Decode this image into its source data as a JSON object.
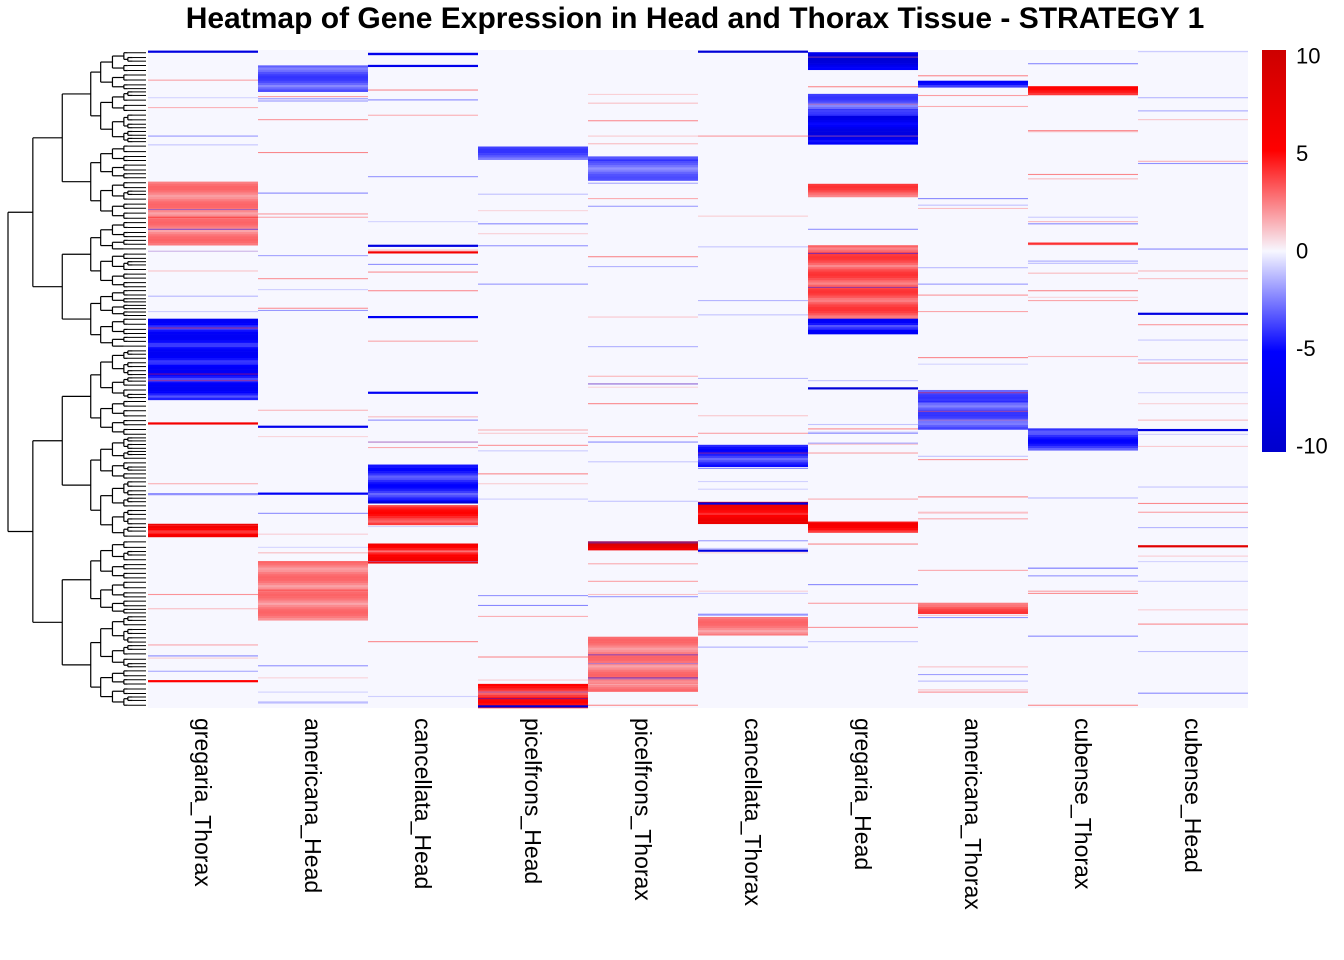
{
  "chart_data": {
    "type": "heatmap",
    "title": "Heatmap of Gene Expression in Head and Thorax Tissue - STRATEGY 1",
    "columns": [
      "gregaria_Thorax",
      "americana_Head",
      "cancellata_Head",
      "picelfrons_Head",
      "picelfrons_Thorax",
      "cancellata_Thorax",
      "gregaria_Head",
      "americana_Thorax",
      "cubense_Thorax",
      "cubense_Head"
    ],
    "row_count": 600,
    "value_range": [
      -10,
      10
    ],
    "colorbar": {
      "ticks": [
        10,
        5,
        0,
        -5,
        -10
      ],
      "tick_labels": [
        "10",
        "5",
        "0",
        "-5",
        "-10"
      ],
      "colors": {
        "low": "#0000CD",
        "mid_low": "#0000FF",
        "mid": "#F7F7FF",
        "mid_high": "#FF0000",
        "high": "#CD0000"
      }
    },
    "blocks": [
      {
        "column": "gregaria_Head",
        "rows": [
          2,
          18
        ],
        "value": -9
      },
      {
        "column": "americana_Head",
        "rows": [
          14,
          38
        ],
        "value": -4
      },
      {
        "column": "americana_Thorax",
        "rows": [
          28,
          34
        ],
        "value": -6
      },
      {
        "column": "cubense_Thorax",
        "rows": [
          33,
          40
        ],
        "value": 5
      },
      {
        "column": "gregaria_Head",
        "rows": [
          40,
          60
        ],
        "value": -4
      },
      {
        "column": "gregaria_Head",
        "rows": [
          60,
          86
        ],
        "value": -8
      },
      {
        "column": "picelfrons_Head",
        "rows": [
          88,
          100
        ],
        "value": -4
      },
      {
        "column": "picelfrons_Thorax",
        "rows": [
          97,
          118
        ],
        "value": -3.5
      },
      {
        "column": "gregaria_Head",
        "rows": [
          122,
          133
        ],
        "value": 4
      },
      {
        "column": "gregaria_Thorax",
        "rows": [
          120,
          178
        ],
        "value": 3
      },
      {
        "column": "gregaria_Head",
        "rows": [
          178,
          245
        ],
        "value": 4
      },
      {
        "column": "gregaria_Head",
        "rows": [
          245,
          258
        ],
        "value": -6
      },
      {
        "column": "gregaria_Thorax",
        "rows": [
          245,
          318
        ],
        "value": -6
      },
      {
        "column": "americana_Thorax",
        "rows": [
          310,
          345
        ],
        "value": -4
      },
      {
        "column": "cubense_Thorax",
        "rows": [
          345,
          365
        ],
        "value": -5
      },
      {
        "column": "cancellata_Thorax",
        "rows": [
          360,
          380
        ],
        "value": -5
      },
      {
        "column": "cancellata_Head",
        "rows": [
          378,
          412
        ],
        "value": -5
      },
      {
        "column": "cancellata_Head",
        "rows": [
          415,
          432
        ],
        "value": 5
      },
      {
        "column": "cancellata_Thorax",
        "rows": [
          412,
          432
        ],
        "value": 7
      },
      {
        "column": "gregaria_Thorax",
        "rows": [
          432,
          444
        ],
        "value": 7
      },
      {
        "column": "gregaria_Head",
        "rows": [
          430,
          440
        ],
        "value": 6
      },
      {
        "column": "picelfrons_Thorax",
        "rows": [
          448,
          456
        ],
        "value": 9
      },
      {
        "column": "cancellata_Head",
        "rows": [
          450,
          468
        ],
        "value": 6
      },
      {
        "column": "americana_Head",
        "rows": [
          466,
          520
        ],
        "value": 3
      },
      {
        "column": "americana_Thorax",
        "rows": [
          504,
          514
        ],
        "value": 4
      },
      {
        "column": "cancellata_Thorax",
        "rows": [
          517,
          533
        ],
        "value": 3
      },
      {
        "column": "picelfrons_Thorax",
        "rows": [
          535,
          585
        ],
        "value": 3
      },
      {
        "column": "picelfrons_Head",
        "rows": [
          578,
          600
        ],
        "value": 5
      }
    ],
    "lines": [
      {
        "column": "gregaria_Thorax",
        "row": 1,
        "value": -8
      },
      {
        "column": "cancellata_Head",
        "row": 3,
        "value": -7
      },
      {
        "column": "cancellata_Head",
        "row": 14,
        "value": -7
      },
      {
        "column": "cancellata_Thorax",
        "row": 1,
        "value": -9
      },
      {
        "column": "cancellata_Head",
        "row": 178,
        "value": -8
      },
      {
        "column": "cancellata_Head",
        "row": 243,
        "value": -6
      },
      {
        "column": "gregaria_Head",
        "row": 308,
        "value": -9
      },
      {
        "column": "cancellata_Head",
        "row": 312,
        "value": -6
      },
      {
        "column": "americana_Head",
        "row": 343,
        "value": -7
      },
      {
        "column": "cancellata_Head",
        "row": 412,
        "value": -9
      },
      {
        "column": "cancellata_Thorax",
        "row": 413,
        "value": -8
      },
      {
        "column": "cancellata_Thorax",
        "row": 456,
        "value": -8
      },
      {
        "column": "picelfrons_Head",
        "row": 598,
        "value": -9
      },
      {
        "column": "cubense_Head",
        "row": 240,
        "value": -8
      },
      {
        "column": "cubense_Head",
        "row": 346,
        "value": -8
      },
      {
        "column": "americana_Head",
        "row": 404,
        "value": -6
      },
      {
        "column": "gregaria_Thorax",
        "row": 340,
        "value": 6
      },
      {
        "column": "cubense_Thorax",
        "row": 176,
        "value": 4
      },
      {
        "column": "gregaria_Thorax",
        "row": 575,
        "value": 5
      },
      {
        "column": "cubense_Head",
        "row": 452,
        "value": 8
      },
      {
        "column": "cancellata_Head",
        "row": 184,
        "value": 6
      }
    ]
  }
}
